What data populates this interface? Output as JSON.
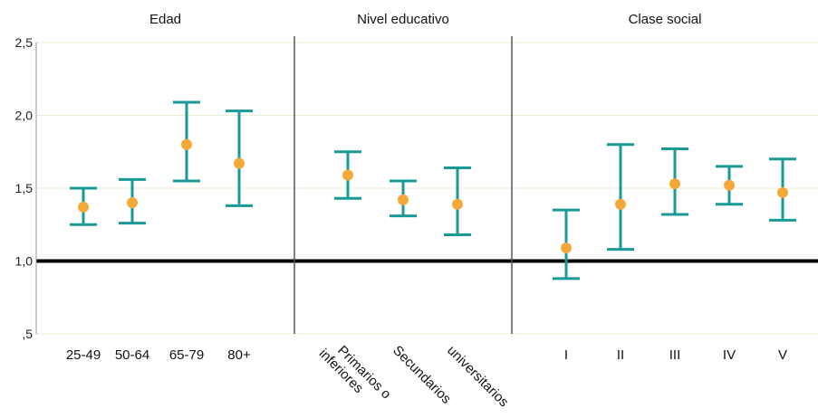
{
  "chart_data": {
    "type": "errorbar",
    "ylim": [
      0.5,
      2.5
    ],
    "y_ticks": [
      {
        "value": 0.5,
        "label": ",5"
      },
      {
        "value": 1.0,
        "label": "1,0"
      },
      {
        "value": 1.5,
        "label": "1,5"
      },
      {
        "value": 2.0,
        "label": "2,0"
      },
      {
        "value": 2.5,
        "label": "2,5"
      }
    ],
    "reference_line": 1.0,
    "grid": true,
    "colors": {
      "bars": "#1a9a96",
      "points": "#f5a83a",
      "reference": "#000000",
      "grid": "#ecebd2",
      "divider": "#555555"
    },
    "panels": [
      {
        "title": "Edad",
        "categories": [
          "25-49",
          "50-64",
          "65-79",
          "80+"
        ],
        "estimate": [
          1.37,
          1.4,
          1.8,
          1.67
        ],
        "lower": [
          1.25,
          1.26,
          1.55,
          1.38
        ],
        "upper": [
          1.5,
          1.56,
          2.09,
          2.03
        ]
      },
      {
        "title": "Nivel educativo",
        "categories": [
          "Primarios o inferiores",
          "Secundarios",
          "universitarios"
        ],
        "estimate": [
          1.59,
          1.42,
          1.39
        ],
        "lower": [
          1.43,
          1.31,
          1.18
        ],
        "upper": [
          1.75,
          1.55,
          1.64
        ]
      },
      {
        "title": "Clase social",
        "categories": [
          "I",
          "II",
          "III",
          "IV",
          "V"
        ],
        "estimate": [
          1.09,
          1.39,
          1.53,
          1.52,
          1.47
        ],
        "lower": [
          0.88,
          1.08,
          1.32,
          1.39,
          1.28
        ],
        "upper": [
          1.35,
          1.8,
          1.77,
          1.65,
          1.7
        ]
      }
    ]
  }
}
